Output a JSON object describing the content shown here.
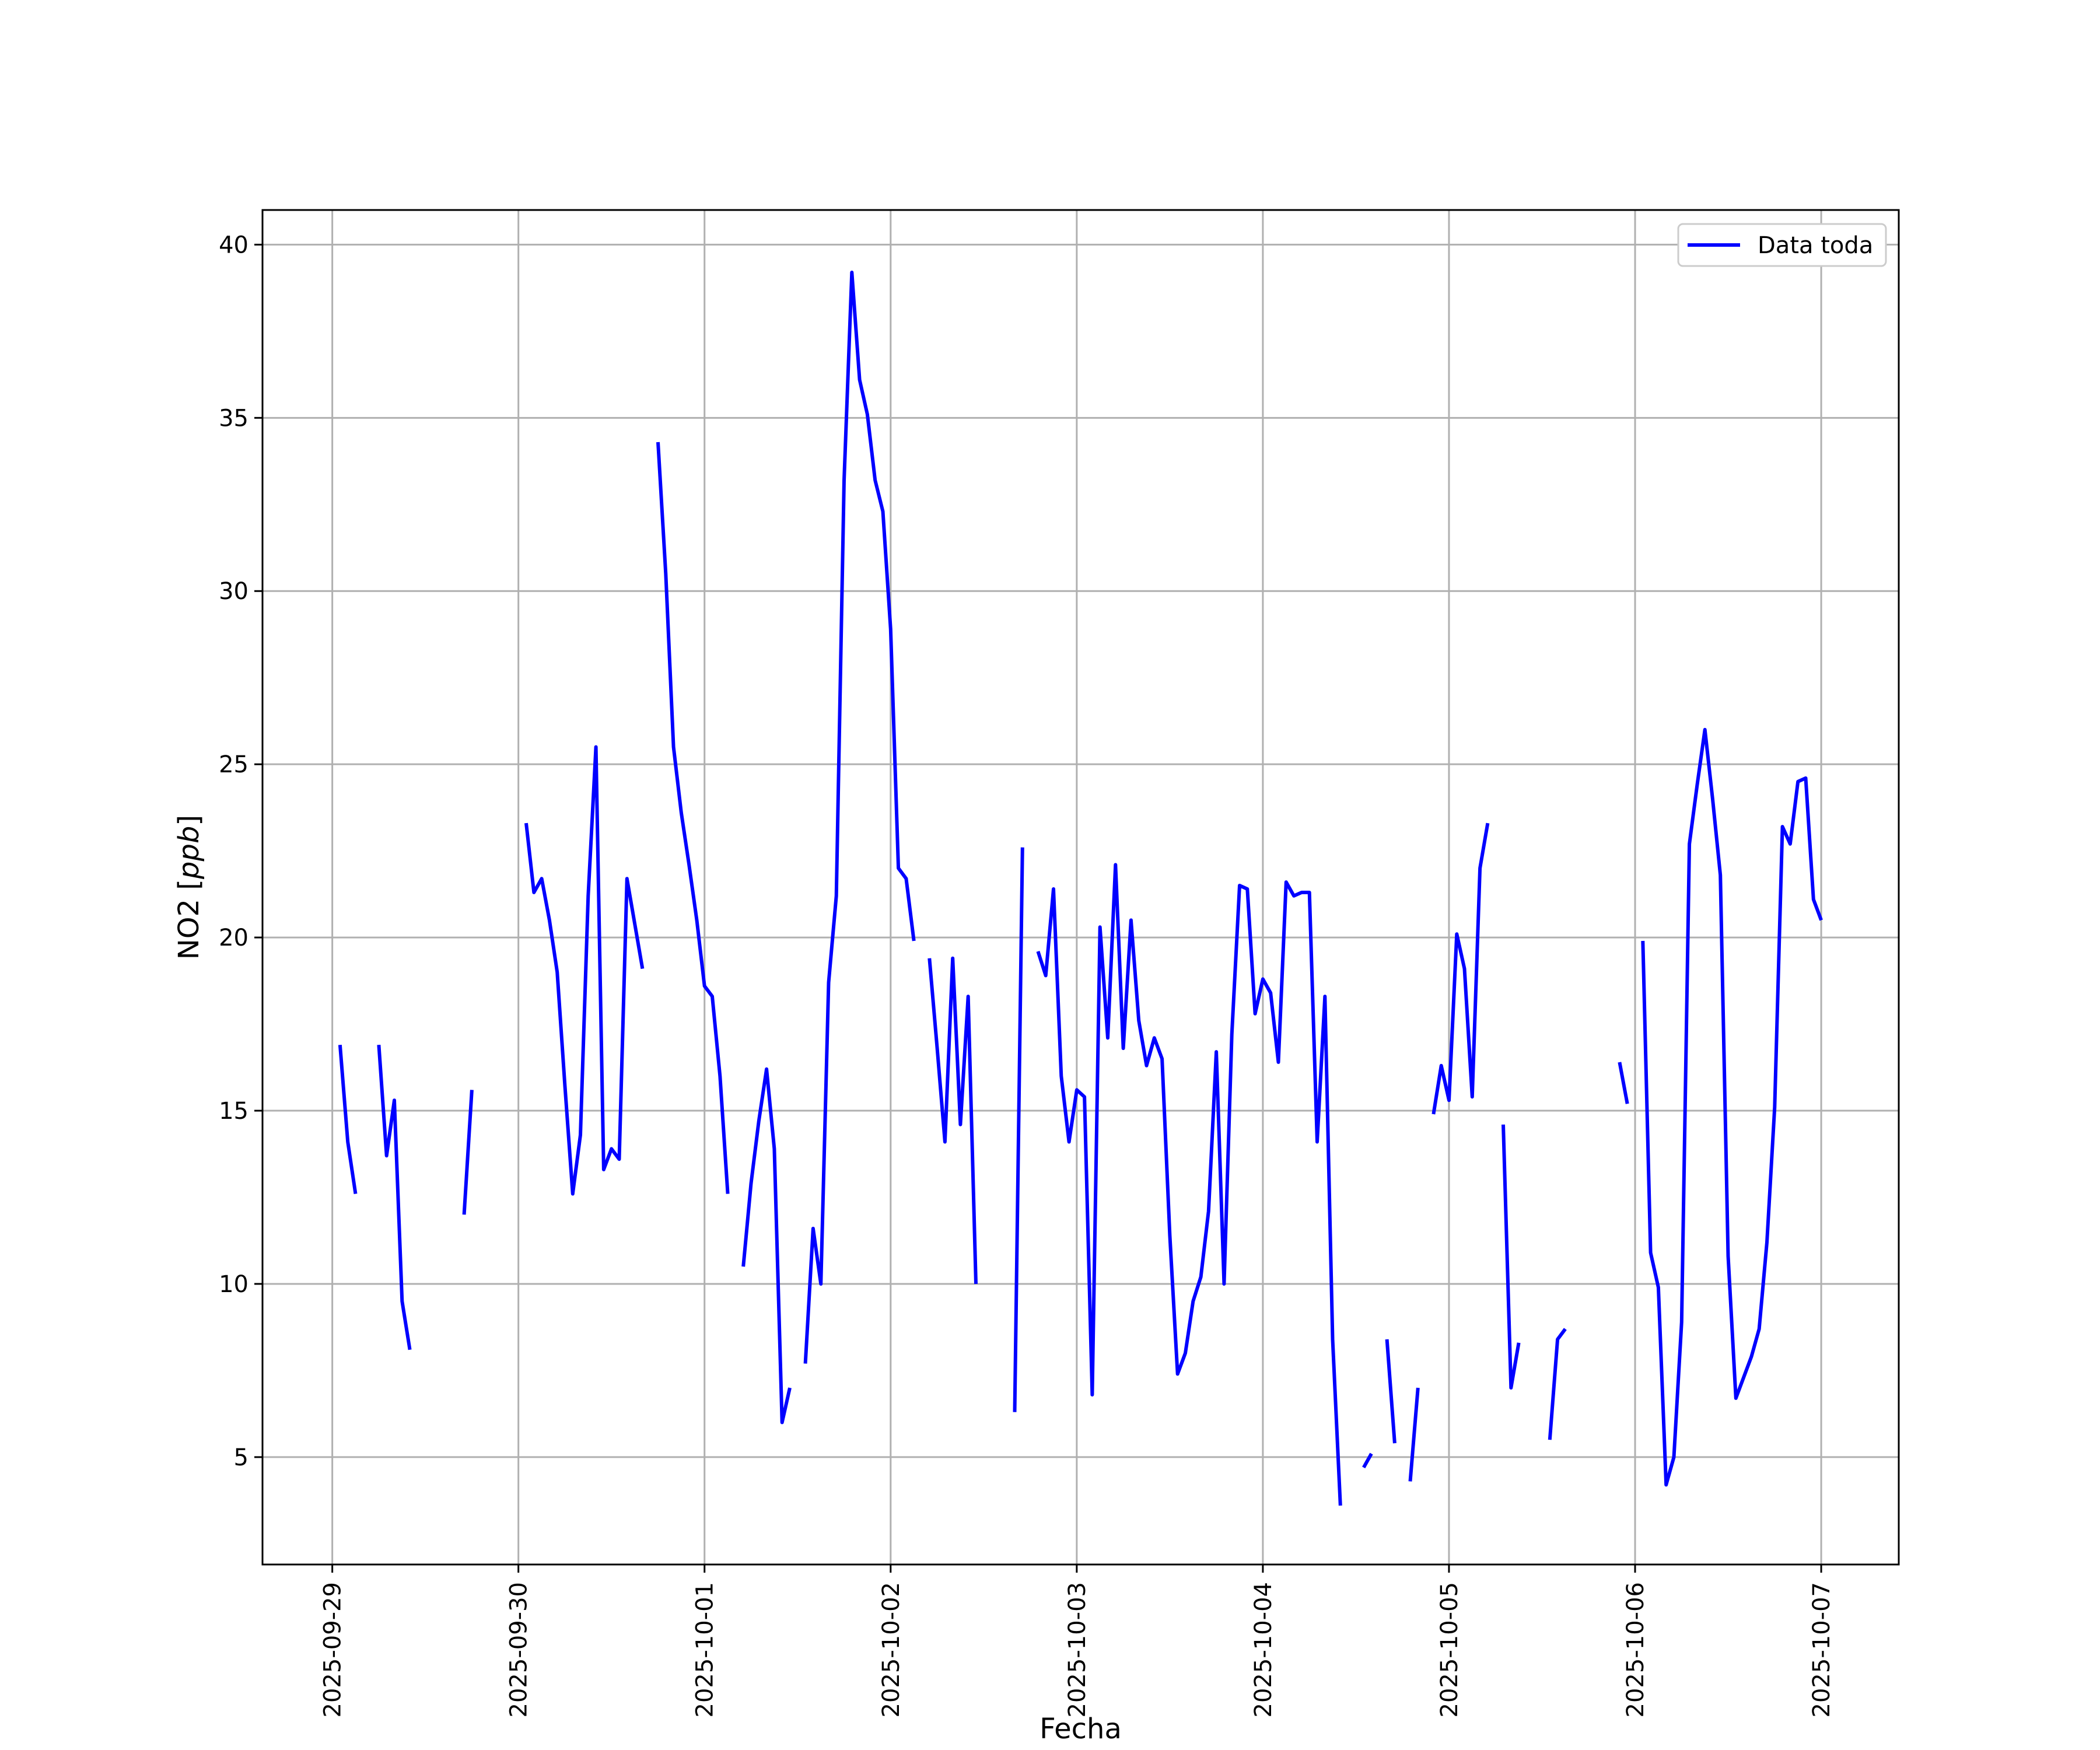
{
  "chart_data": {
    "type": "line",
    "title": "",
    "xlabel": "Fecha",
    "ylabel": "NO2 [ppb]",
    "ylabel_plain": "NO2 [",
    "ylabel_italic": "ppb",
    "ylabel_close": "]",
    "xlim": [
      "2025-09-28T15:00",
      "2025-10-07T10:00"
    ],
    "ylim": [
      1.9,
      41.0
    ],
    "x_ticks": [
      "2025-09-29",
      "2025-09-30",
      "2025-10-01",
      "2025-10-02",
      "2025-10-03",
      "2025-10-04",
      "2025-10-05",
      "2025-10-06",
      "2025-10-07"
    ],
    "y_ticks": [
      5,
      10,
      15,
      20,
      25,
      30,
      35,
      40
    ],
    "grid": true,
    "legend_position": "top-right",
    "series": [
      {
        "name": "Data toda",
        "color": "#0000ff",
        "segments": [
          [
            [
              "2025-09-29T01:00",
              16.9
            ],
            [
              "2025-09-29T02:00",
              14.1
            ],
            [
              "2025-09-29T03:00",
              12.6
            ]
          ],
          [
            [
              "2025-09-29T06:00",
              16.9
            ],
            [
              "2025-09-29T07:00",
              13.7
            ],
            [
              "2025-09-29T08:00",
              15.3
            ],
            [
              "2025-09-29T09:00",
              9.5
            ],
            [
              "2025-09-29T10:00",
              8.1
            ]
          ],
          [
            [
              "2025-09-29T17:00",
              12.0
            ],
            [
              "2025-09-29T18:00",
              15.6
            ]
          ],
          [
            [
              "2025-09-30T01:00",
              23.3
            ],
            [
              "2025-09-30T02:00",
              21.3
            ],
            [
              "2025-09-30T03:00",
              21.7
            ],
            [
              "2025-09-30T04:00",
              20.5
            ],
            [
              "2025-09-30T05:00",
              19.0
            ],
            [
              "2025-09-30T06:00",
              15.7
            ],
            [
              "2025-09-30T07:00",
              12.6
            ],
            [
              "2025-09-30T08:00",
              14.3
            ],
            [
              "2025-09-30T09:00",
              21.2
            ],
            [
              "2025-09-30T10:00",
              25.5
            ],
            [
              "2025-09-30T11:00",
              13.3
            ],
            [
              "2025-09-30T12:00",
              13.9
            ],
            [
              "2025-09-30T13:00",
              13.6
            ],
            [
              "2025-09-30T14:00",
              21.7
            ],
            [
              "2025-09-30T15:00",
              20.4
            ],
            [
              "2025-09-30T16:00",
              19.1
            ]
          ],
          [
            [
              "2025-09-30T18:00",
              34.3
            ],
            [
              "2025-09-30T19:00",
              30.5
            ],
            [
              "2025-09-30T20:00",
              25.5
            ],
            [
              "2025-09-30T21:00",
              23.6
            ],
            [
              "2025-09-30T22:00",
              22.1
            ],
            [
              "2025-09-30T23:00",
              20.5
            ],
            [
              "2025-10-01T00:00",
              18.6
            ],
            [
              "2025-10-01T01:00",
              18.3
            ],
            [
              "2025-10-01T02:00",
              16.0
            ],
            [
              "2025-10-01T03:00",
              12.6
            ]
          ],
          [
            [
              "2025-10-01T05:00",
              10.5
            ],
            [
              "2025-10-01T06:00",
              12.9
            ],
            [
              "2025-10-01T07:00",
              14.7
            ],
            [
              "2025-10-01T08:00",
              16.2
            ],
            [
              "2025-10-01T09:00",
              13.9
            ],
            [
              "2025-10-01T10:00",
              6.0
            ],
            [
              "2025-10-01T11:00",
              7.0
            ]
          ],
          [
            [
              "2025-10-01T13:00",
              7.7
            ],
            [
              "2025-10-01T14:00",
              11.6
            ],
            [
              "2025-10-01T15:00",
              10.0
            ],
            [
              "2025-10-01T16:00",
              18.7
            ],
            [
              "2025-10-01T17:00",
              21.2
            ],
            [
              "2025-10-01T18:00",
              33.2
            ],
            [
              "2025-10-01T19:00",
              39.2
            ],
            [
              "2025-10-01T20:00",
              36.1
            ],
            [
              "2025-10-01T21:00",
              35.1
            ],
            [
              "2025-10-01T22:00",
              33.2
            ],
            [
              "2025-10-01T23:00",
              32.3
            ],
            [
              "2025-10-02T00:00",
              28.9
            ],
            [
              "2025-10-02T01:00",
              22.0
            ],
            [
              "2025-10-02T02:00",
              21.7
            ],
            [
              "2025-10-02T03:00",
              19.9
            ]
          ],
          [
            [
              "2025-10-02T05:00",
              19.4
            ],
            [
              "2025-10-02T06:00",
              16.8
            ],
            [
              "2025-10-02T07:00",
              14.1
            ],
            [
              "2025-10-02T08:00",
              19.4
            ],
            [
              "2025-10-02T09:00",
              14.6
            ],
            [
              "2025-10-02T10:00",
              18.3
            ],
            [
              "2025-10-02T11:00",
              10.0
            ]
          ],
          [
            [
              "2025-10-02T16:00",
              6.3
            ],
            [
              "2025-10-02T17:00",
              22.6
            ]
          ],
          [
            [
              "2025-10-02T19:00",
              19.6
            ],
            [
              "2025-10-02T20:00",
              18.9
            ],
            [
              "2025-10-02T21:00",
              21.4
            ],
            [
              "2025-10-02T22:00",
              16.0
            ],
            [
              "2025-10-02T23:00",
              14.1
            ],
            [
              "2025-10-03T00:00",
              15.6
            ],
            [
              "2025-10-03T01:00",
              15.4
            ],
            [
              "2025-10-03T02:00",
              6.8
            ],
            [
              "2025-10-03T03:00",
              20.3
            ],
            [
              "2025-10-03T04:00",
              17.1
            ],
            [
              "2025-10-03T05:00",
              22.1
            ],
            [
              "2025-10-03T06:00",
              16.8
            ],
            [
              "2025-10-03T07:00",
              20.5
            ],
            [
              "2025-10-03T08:00",
              17.6
            ],
            [
              "2025-10-03T09:00",
              16.3
            ],
            [
              "2025-10-03T10:00",
              17.1
            ],
            [
              "2025-10-03T11:00",
              16.5
            ],
            [
              "2025-10-03T12:00",
              11.4
            ],
            [
              "2025-10-03T13:00",
              7.4
            ],
            [
              "2025-10-03T14:00",
              8.0
            ],
            [
              "2025-10-03T15:00",
              9.5
            ],
            [
              "2025-10-03T16:00",
              10.2
            ],
            [
              "2025-10-03T17:00",
              12.1
            ],
            [
              "2025-10-03T18:00",
              16.7
            ],
            [
              "2025-10-03T19:00",
              10.0
            ],
            [
              "2025-10-03T20:00",
              17.2
            ],
            [
              "2025-10-03T21:00",
              21.5
            ],
            [
              "2025-10-03T22:00",
              21.4
            ],
            [
              "2025-10-03T23:00",
              17.8
            ],
            [
              "2025-10-04T00:00",
              18.8
            ],
            [
              "2025-10-04T01:00",
              18.4
            ],
            [
              "2025-10-04T02:00",
              16.4
            ],
            [
              "2025-10-04T03:00",
              21.6
            ],
            [
              "2025-10-04T04:00",
              21.2
            ],
            [
              "2025-10-04T05:00",
              21.3
            ],
            [
              "2025-10-04T06:00",
              21.3
            ],
            [
              "2025-10-04T07:00",
              14.1
            ],
            [
              "2025-10-04T08:00",
              18.3
            ],
            [
              "2025-10-04T09:00",
              8.4
            ],
            [
              "2025-10-04T10:00",
              3.6
            ]
          ],
          [
            [
              "2025-10-04T13:00",
              4.7
            ],
            [
              "2025-10-04T14:00",
              5.1
            ]
          ],
          [
            [
              "2025-10-04T16:00",
              8.4
            ],
            [
              "2025-10-04T17:00",
              5.4
            ]
          ],
          [
            [
              "2025-10-04T19:00",
              4.3
            ],
            [
              "2025-10-04T20:00",
              7.0
            ]
          ],
          [
            [
              "2025-10-04T22:00",
              14.9
            ],
            [
              "2025-10-04T23:00",
              16.3
            ],
            [
              "2025-10-05T00:00",
              15.3
            ],
            [
              "2025-10-05T01:00",
              20.1
            ],
            [
              "2025-10-05T02:00",
              19.1
            ],
            [
              "2025-10-05T03:00",
              15.4
            ],
            [
              "2025-10-05T04:00",
              22.0
            ],
            [
              "2025-10-05T05:00",
              23.3
            ]
          ],
          [
            [
              "2025-10-05T07:00",
              14.6
            ],
            [
              "2025-10-05T08:00",
              7.0
            ],
            [
              "2025-10-05T09:00",
              8.3
            ]
          ],
          [
            [
              "2025-10-05T13:00",
              5.5
            ],
            [
              "2025-10-05T14:00",
              8.4
            ],
            [
              "2025-10-05T15:00",
              8.7
            ]
          ],
          [
            [
              "2025-10-05T22:00",
              16.4
            ],
            [
              "2025-10-05T23:00",
              15.2
            ]
          ],
          [
            [
              "2025-10-06T01:00",
              19.9
            ],
            [
              "2025-10-06T02:00",
              10.9
            ],
            [
              "2025-10-06T03:00",
              9.9
            ],
            [
              "2025-10-06T04:00",
              4.2
            ],
            [
              "2025-10-06T05:00",
              5.0
            ],
            [
              "2025-10-06T06:00",
              8.9
            ],
            [
              "2025-10-06T07:00",
              22.7
            ],
            [
              "2025-10-06T08:00",
              24.4
            ],
            [
              "2025-10-06T09:00",
              26.0
            ],
            [
              "2025-10-06T10:00",
              24.0
            ],
            [
              "2025-10-06T11:00",
              21.8
            ],
            [
              "2025-10-06T12:00",
              10.8
            ],
            [
              "2025-10-06T13:00",
              6.7
            ],
            [
              "2025-10-06T14:00",
              7.3
            ],
            [
              "2025-10-06T15:00",
              7.9
            ],
            [
              "2025-10-06T16:00",
              8.7
            ],
            [
              "2025-10-06T17:00",
              11.2
            ],
            [
              "2025-10-06T18:00",
              15.1
            ],
            [
              "2025-10-06T19:00",
              23.2
            ],
            [
              "2025-10-06T20:00",
              22.7
            ],
            [
              "2025-10-06T21:00",
              24.5
            ],
            [
              "2025-10-06T22:00",
              24.6
            ],
            [
              "2025-10-06T23:00",
              21.1
            ],
            [
              "2025-10-07T00:00",
              20.5
            ]
          ]
        ]
      }
    ]
  }
}
